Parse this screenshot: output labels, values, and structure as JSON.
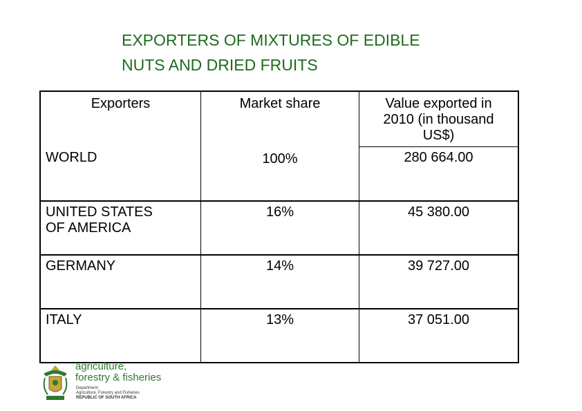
{
  "title_lines": [
    "EXPORTERS OF MIXTURES OF EDIBLE",
    "NUTS AND DRIED FRUITS"
  ],
  "table": {
    "headers": [
      "Exporters",
      "Market share",
      "Value exported in",
      "2010 (in thousand",
      "US$)"
    ],
    "world": {
      "name": "WORLD",
      "share": "100%",
      "value": "280 664.00"
    },
    "rows": [
      {
        "name_lines": [
          "UNITED STATES",
          "OF AMERICA"
        ],
        "share": "16%",
        "value": "45 380.00"
      },
      {
        "name_lines": [
          "GERMANY"
        ],
        "share": "14%",
        "value": "39 727.00"
      },
      {
        "name_lines": [
          "ITALY"
        ],
        "share": "13%",
        "value": "37 051.00"
      }
    ]
  },
  "logo": {
    "line1": "agriculture,",
    "line2": "forestry & fisheries",
    "small1": "Department:",
    "small2": "Agriculture, Forestry and Fisheries",
    "small3": "REPUBLIC OF SOUTH AFRICA",
    "colors": {
      "green": "#2d7a2d",
      "gold": "#c8a23a"
    }
  },
  "colors": {
    "title": "#1e6b1e"
  }
}
